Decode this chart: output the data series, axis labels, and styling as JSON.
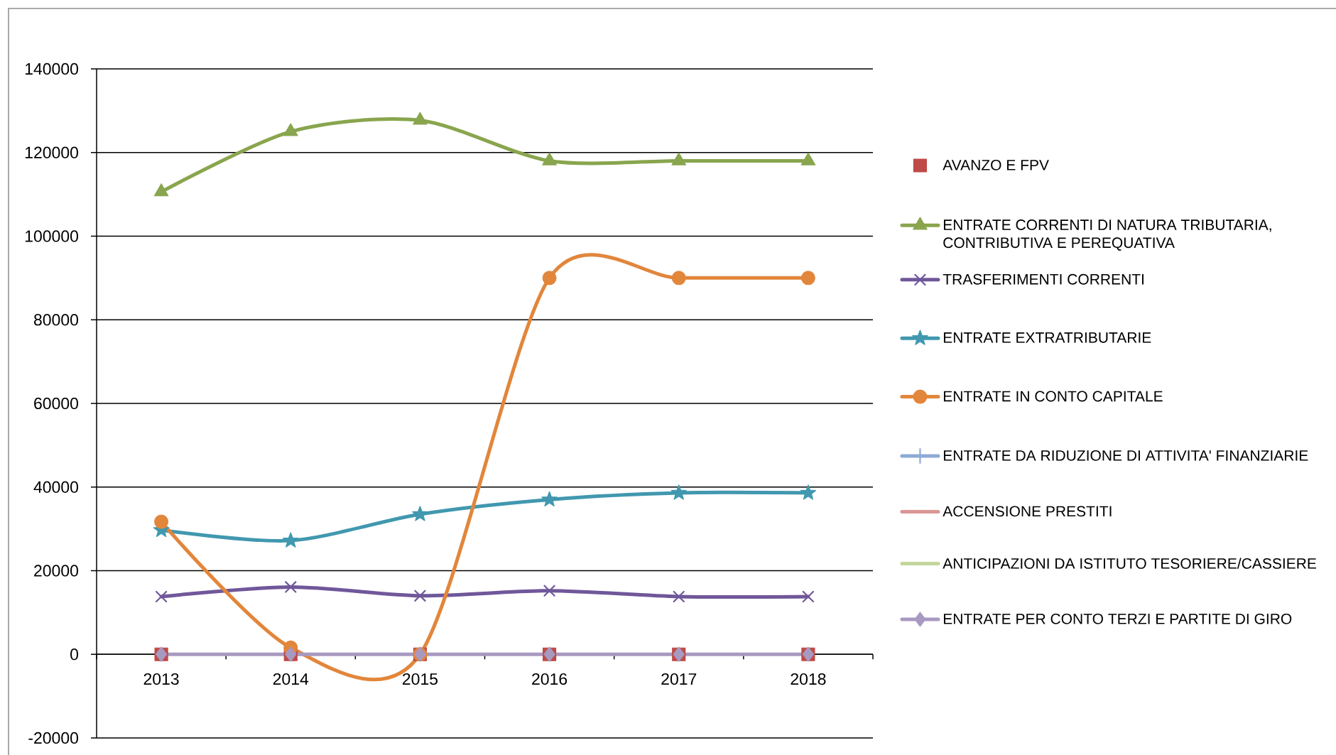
{
  "chart_data": {
    "type": "line",
    "categories": [
      "2013",
      "2014",
      "2015",
      "2016",
      "2017",
      "2018"
    ],
    "series": [
      {
        "name": "AVANZO E FPV",
        "type": "scatter",
        "color": "#be4b48",
        "marker": "square",
        "values": [
          0,
          0,
          0,
          0,
          0,
          0
        ]
      },
      {
        "name": "ENTRATE CORRENTI DI NATURA TRIBUTARIA, CONTRIBUTIVA E PEREQUATIVA",
        "color": "#89a54e",
        "marker": "triangle",
        "values": [
          110600,
          125000,
          127700,
          118000,
          118000,
          118000
        ]
      },
      {
        "name": "TRASFERIMENTI CORRENTI",
        "color": "#70579a",
        "marker": "cross",
        "values": [
          13800,
          16100,
          14000,
          15200,
          13800,
          13800
        ]
      },
      {
        "name": "ENTRATE EXTRATRIBUTARIE",
        "color": "#4198af",
        "marker": "star",
        "values": [
          29700,
          27200,
          33500,
          37000,
          38600,
          38600
        ]
      },
      {
        "name": "ENTRATE IN CONTO CAPITALE",
        "color": "#e2863b",
        "marker": "circle",
        "values": [
          31700,
          1600,
          0,
          90000,
          90000,
          90000
        ]
      },
      {
        "name": "ENTRATE DA RIDUZIONE DI ATTIVITA' FINANZIARIE",
        "color": "#8eaad6",
        "marker": "plus",
        "values": [
          null,
          null,
          null,
          null,
          null,
          null
        ]
      },
      {
        "name": "ACCENSIONE PRESTITI",
        "color": "#d99694",
        "marker": "none",
        "values": [
          null,
          null,
          null,
          null,
          null,
          null
        ]
      },
      {
        "name": "ANTICIPAZIONI DA ISTITUTO TESORIERE/CASSIERE",
        "color": "#c3d69b",
        "marker": "none",
        "values": [
          null,
          null,
          null,
          null,
          null,
          null
        ]
      },
      {
        "name": "ENTRATE PER CONTO TERZI E PARTITE DI GIRO",
        "color": "#a899c1",
        "marker": "diamond",
        "values": [
          0,
          0,
          0,
          0,
          0,
          0
        ]
      }
    ],
    "ylim": [
      -20000,
      140000
    ],
    "yticks": [
      -20000,
      0,
      20000,
      40000,
      60000,
      80000,
      100000,
      120000,
      140000
    ],
    "grid": "y",
    "legend": "right",
    "line_style": "solid"
  }
}
